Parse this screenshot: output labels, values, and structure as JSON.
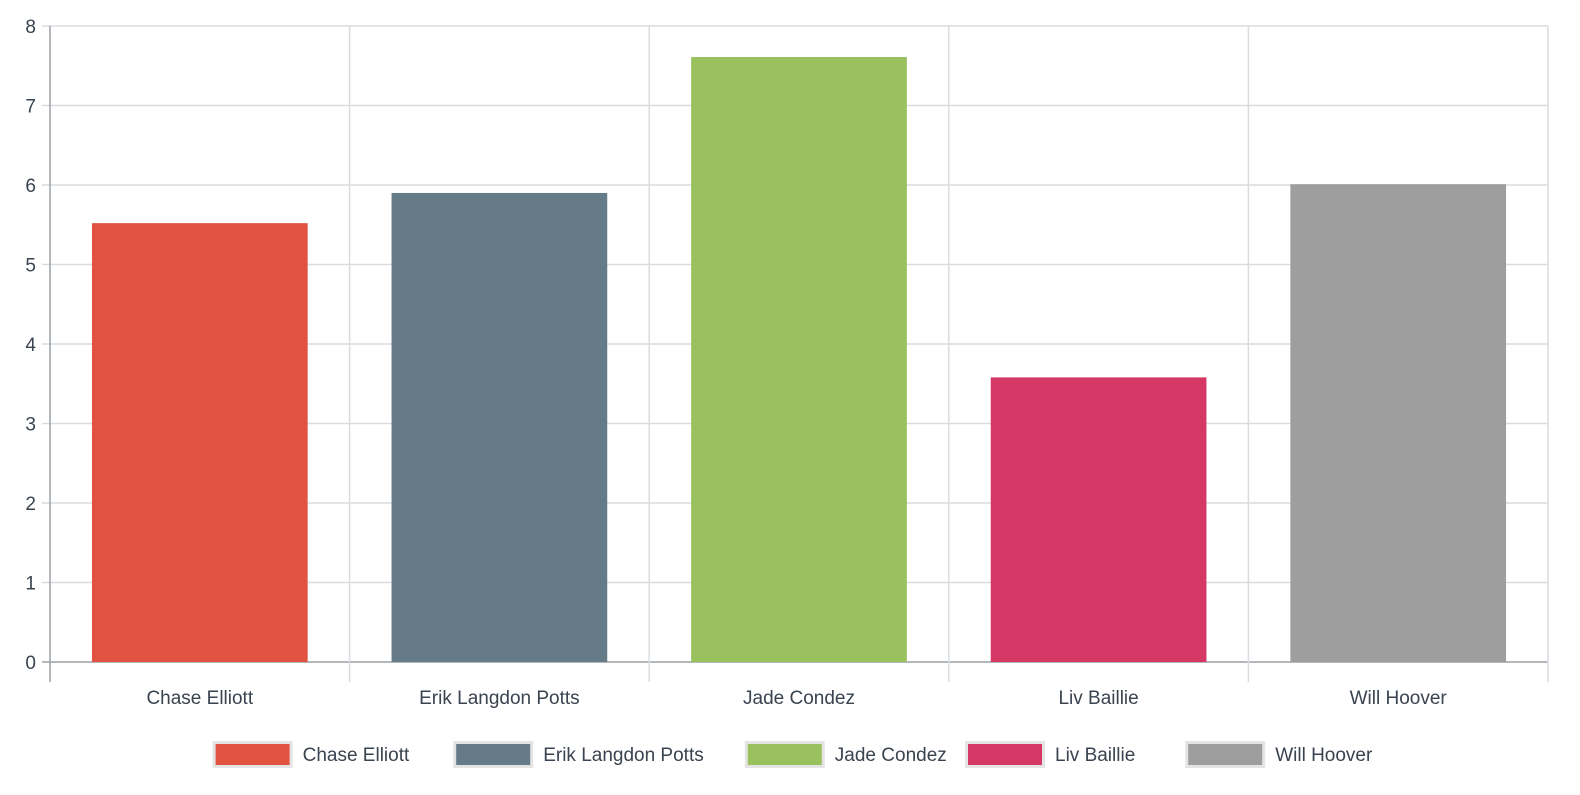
{
  "chart_data": {
    "type": "bar",
    "categories": [
      "Chase Elliott",
      "Erik Langdon Potts",
      "Jade Condez",
      "Liv Baillie",
      "Will Hoover"
    ],
    "values": [
      5.52,
      5.9,
      7.61,
      3.58,
      6.01
    ],
    "colors": [
      "#e15241",
      "#667b88",
      "#99c15d",
      "#d63865",
      "#9e9e9e"
    ],
    "ylim": [
      0,
      8
    ],
    "yticks": [
      "0",
      "1",
      "2",
      "3",
      "4",
      "5",
      "6",
      "7",
      "8"
    ],
    "grid": true,
    "legend_position": "bottom",
    "legend": [
      "Chase Elliott",
      "Erik Langdon Potts",
      "Jade Condez",
      "Liv Baillie",
      "Will Hoover"
    ]
  }
}
